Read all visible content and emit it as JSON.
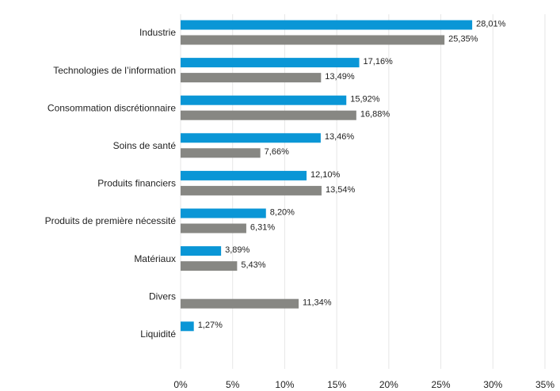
{
  "chart_data": {
    "type": "hbar",
    "categories": [
      "Industrie",
      "Technologies de l’information",
      "Consommation discrétionnaire",
      "Soins de santé",
      "Produits financiers",
      "Produits de première nécessité",
      "Matériaux",
      "Divers",
      "Liquidité"
    ],
    "series": [
      {
        "color": "#0a96d6",
        "values": [
          28.01,
          17.16,
          15.92,
          13.46,
          12.1,
          8.2,
          3.89,
          null,
          1.27
        ],
        "value_labels": [
          "28,01%",
          "17,16%",
          "15,92%",
          "13,46%",
          "12,10%",
          "8,20%",
          "3,89%",
          null,
          "1,27%"
        ]
      },
      {
        "color": "#878783",
        "values": [
          25.35,
          13.49,
          16.88,
          7.66,
          13.54,
          6.31,
          5.43,
          11.34,
          null
        ],
        "value_labels": [
          "25,35%",
          "13,49%",
          "16,88%",
          "7,66%",
          "13,54%",
          "6,31%",
          "5,43%",
          "11,34%",
          null
        ]
      }
    ],
    "xlim": [
      0,
      35
    ],
    "xticks": [
      {
        "value": 0,
        "label": "0%"
      },
      {
        "value": 5,
        "label": "5%"
      },
      {
        "value": 10,
        "label": "10%"
      },
      {
        "value": 15,
        "label": "15%"
      },
      {
        "value": 20,
        "label": "20%"
      },
      {
        "value": 25,
        "label": "25%"
      },
      {
        "value": 30,
        "label": "30%"
      },
      {
        "value": 35,
        "label": "35%"
      }
    ],
    "grid": true
  }
}
